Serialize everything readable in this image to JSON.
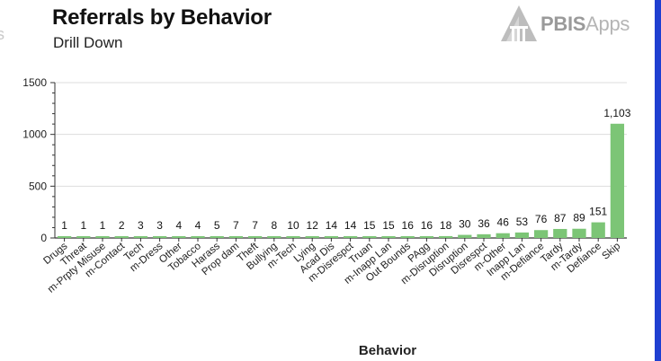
{
  "header": {
    "title": "Referrals by Behavior",
    "subtitle": "Drill Down",
    "left_fragment": "s"
  },
  "logo": {
    "brand": "PBIS",
    "suffix": "Apps",
    "icon": "pbis-building-icon",
    "brand_color": "#9a9a9a",
    "suffix_color": "#b5b5b5"
  },
  "colors": {
    "bar": "#7cc576",
    "axis": "#333333",
    "grid": "#dddddd",
    "frame_accent": "#1f3fd1"
  },
  "chart_data": {
    "type": "bar",
    "title": "Referrals by Behavior",
    "subtitle": "Drill Down",
    "xlabel": "Behavior",
    "ylabel": "",
    "ylim": [
      0,
      1500
    ],
    "yticks": [
      0,
      500,
      1000,
      1500
    ],
    "ytick_labels": [
      "0",
      "500",
      "1000",
      "1500"
    ],
    "grid": true,
    "categories": [
      "Drugs",
      "Threat",
      "m-Prpty Misuse",
      "m-Contact",
      "Tech",
      "m-Dress",
      "Other",
      "Tobacco",
      "Harass",
      "Prop dam",
      "Theft",
      "Bullying",
      "m-Tech",
      "Lying",
      "Acad Dis",
      "m-Disrespct",
      "Truan",
      "m-Inapp Lan",
      "Out Bounds",
      "PAgg",
      "m-Disruption",
      "Disruption",
      "Disrespct",
      "m-Other",
      "Inapp Lan",
      "m-Defiance",
      "Tardy",
      "m-Tardy",
      "Defiance",
      "Skip"
    ],
    "values": [
      1,
      1,
      1,
      2,
      3,
      3,
      4,
      4,
      5,
      7,
      7,
      8,
      10,
      12,
      14,
      14,
      15,
      15,
      16,
      16,
      18,
      30,
      36,
      46,
      53,
      76,
      87,
      89,
      151,
      1103
    ],
    "data_labels": [
      "1",
      "1",
      "1",
      "2",
      "3",
      "3",
      "4",
      "4",
      "5",
      "7",
      "7",
      "8",
      "10",
      "12",
      "14",
      "14",
      "15",
      "15",
      "16",
      "16",
      "18",
      "30",
      "36",
      "46",
      "53",
      "76",
      "87",
      "89",
      "151",
      "1,103"
    ]
  }
}
